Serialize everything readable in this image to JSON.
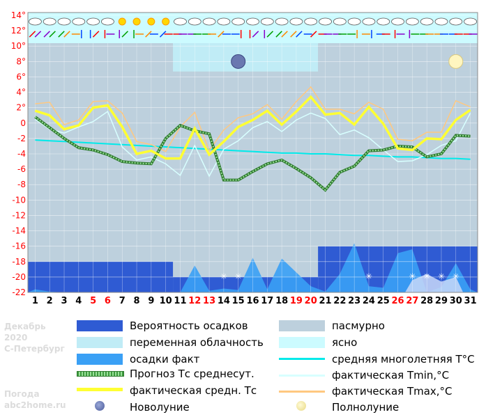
{
  "header": {
    "month": "Декабрь",
    "year": "2020",
    "city": "С-Петербург",
    "site_line1": "Погода",
    "site_line2": "abc2home.ru"
  },
  "legend": {
    "precip_prob": "Вероятность осадков",
    "partly_cloudy": "переменная облачность",
    "precip_fact": "осадки факт",
    "forecast_tc": "Прогноз Тс среднесут.",
    "actual_tc": "фактическая средн. Тс",
    "new_moon": "Новолуние",
    "overcast": "пасмурно",
    "clear": "ясно",
    "avg_longterm": "средняя многолетняя T°C",
    "actual_tmin": "фактическая Tmin,°C",
    "actual_tmax": "фактическая Tmax,°C",
    "full_moon": "Полнолуние"
  },
  "colors": {
    "overcast": "#bdd0dd",
    "partly_cloudy": "#c0ecf6",
    "clear": "#ccfbff",
    "precip_prob": "#2f5bd3",
    "precip_fact": "#3aa0f5",
    "forecast": "#3d9a3d",
    "actual": "#ffff33",
    "tmax": "#ffc880",
    "tmin": "#d8ffff",
    "longterm": "#00eaea",
    "weekend": "#ff0000"
  },
  "chart_data": {
    "type": "line",
    "ylim": [
      -22,
      14
    ],
    "yticks": [
      "14°",
      "12°",
      "10°",
      "8°",
      "6°",
      "4°",
      "2°",
      "0",
      "-2",
      "-4",
      "-6",
      "-8",
      "-10",
      "-12",
      "-14",
      "-16",
      "-18",
      "-20",
      "-22"
    ],
    "days": [
      "1",
      "2",
      "3",
      "4",
      "5",
      "6",
      "7",
      "8",
      "9",
      "10",
      "11",
      "12",
      "13",
      "14",
      "15",
      "16",
      "17",
      "18",
      "19",
      "20",
      "21",
      "22",
      "23",
      "24",
      "25",
      "26",
      "27",
      "28",
      "29",
      "30",
      "31"
    ],
    "weekend_days": [
      5,
      6,
      12,
      13,
      19,
      20,
      26,
      27
    ],
    "sky": [
      {
        "from": 0.5,
        "to": 10.5,
        "state": "overcast"
      },
      {
        "from": 10.5,
        "to": 20.5,
        "state": "partly_cloudy"
      },
      {
        "from": 20.5,
        "to": 31.5,
        "state": "overcast"
      }
    ],
    "precip_probability": [
      {
        "from": 0.5,
        "to": 10.5,
        "level": -18
      },
      {
        "from": 10.5,
        "to": 20.5,
        "level": -20
      },
      {
        "from": 20.5,
        "to": 31.5,
        "level": -16
      }
    ],
    "precip_fact": [
      -21.6,
      -21.9,
      -22,
      -22,
      -22,
      -22,
      -22,
      -22,
      -22,
      -22,
      -22,
      -18.5,
      -21.8,
      -21.5,
      -21.7,
      -17.5,
      -21.6,
      -17.6,
      -19.4,
      -21.2,
      -21.9,
      -19.6,
      -15.6,
      -21.2,
      -21.4,
      -16.9,
      -16.4,
      -22,
      -21.3,
      -18.2,
      -21.6
    ],
    "snow_days": [
      14,
      15,
      24,
      27,
      28,
      29,
      30
    ],
    "series": [
      {
        "key": "forecast",
        "values": [
          0.8,
          -0.6,
          -2,
          -3.2,
          -3.5,
          -4.1,
          -5,
          -5.2,
          -5.3,
          -2,
          -0.3,
          -1,
          -1.4,
          -7.4,
          -7.4,
          -6.3,
          -5.3,
          -4.8,
          -5.9,
          -7.1,
          -8.7,
          -6.4,
          -5.6,
          -3.6,
          -3.5,
          -3,
          -3.1,
          -4.4,
          -4,
          -1.6,
          -1.7
        ]
      },
      {
        "key": "tmax",
        "values": [
          2.5,
          2.7,
          -0.2,
          0.4,
          2.8,
          2.9,
          1.3,
          -2.4,
          -2.8,
          -3.7,
          -0.5,
          1.4,
          -3.6,
          -0.9,
          0.7,
          1.2,
          2.4,
          0.5,
          2.8,
          4.7,
          1.8,
          1.8,
          1.2,
          2.7,
          1.8,
          -2.1,
          -2.3,
          -1.2,
          -1.2,
          2.9,
          2.1
        ]
      },
      {
        "key": "tmin",
        "values": [
          0.5,
          -0.8,
          -1.3,
          -0.5,
          0.2,
          1.5,
          -3.1,
          -4.8,
          -4.4,
          -5.3,
          -6.8,
          -2.9,
          -6.9,
          -3.4,
          -2.3,
          -0.6,
          0.2,
          -1.1,
          0.4,
          1.3,
          0.6,
          -1.5,
          -0.9,
          -1.9,
          -3.5,
          -5,
          -4.9,
          -4.1,
          -2.9,
          -2.3,
          1.3
        ]
      },
      {
        "key": "actual",
        "values": [
          1.6,
          1,
          -0.8,
          -0.3,
          2,
          2.3,
          -0.5,
          -4,
          -3.6,
          -4.6,
          -4.6,
          -0.7,
          -4.1,
          -2.4,
          -0.5,
          0.4,
          1.6,
          -0.2,
          1.5,
          3.4,
          1.1,
          1.3,
          -0.2,
          2.1,
          -0.1,
          -3.3,
          -3.5,
          -2,
          -2.1,
          0.4,
          1.7
        ]
      },
      {
        "key": "longterm",
        "values": [
          -2.2,
          -2.3,
          -2.4,
          -2.5,
          -2.6,
          -2.7,
          -2.8,
          -2.9,
          -3,
          -3.1,
          -3.2,
          -3.3,
          -3.4,
          -3.5,
          -3.6,
          -3.7,
          -3.8,
          -3.9,
          -3.9,
          -4,
          -4,
          -4.1,
          -4.2,
          -4.2,
          -4.3,
          -4.4,
          -4.4,
          -4.5,
          -4.6,
          -4.6,
          -4.7
        ]
      }
    ],
    "weather_icons": [
      "cloud",
      "cloud",
      "cloud",
      "cloud",
      "cloud",
      "cloud",
      "sun",
      "sun",
      "sun",
      "sun",
      "cloud",
      "cloud",
      "cloud",
      "cloud",
      "cloud",
      "cloud",
      "cloud",
      "cloud",
      "cloud",
      "cloud",
      "cloud",
      "cloud",
      "cloud",
      "cloud",
      "cloud",
      "cloud",
      "cloud",
      "cloud",
      "cloud",
      "cloud",
      "cloud"
    ],
    "wind_arrows": [
      [
        "ne",
        "ne"
      ],
      [
        "ne",
        "sw"
      ],
      [
        "ne",
        "ne"
      ],
      [
        "e",
        "n"
      ],
      [
        "n",
        "ne"
      ],
      [
        "n",
        "w"
      ],
      [
        "n",
        "ne"
      ],
      [
        "n",
        "e"
      ],
      [
        "ne",
        "e"
      ],
      [
        "ne",
        "e"
      ],
      [
        "e",
        "e"
      ],
      [
        "e",
        "e"
      ],
      [
        "e",
        "e"
      ],
      [
        "sw",
        "e"
      ],
      [
        "e",
        "s"
      ],
      [
        "n",
        "sw"
      ],
      [
        "n",
        "ne"
      ],
      [
        "sw",
        "ne"
      ],
      [
        "ne",
        "ne"
      ],
      [
        "e",
        "ne"
      ],
      [
        "e",
        "e"
      ],
      [
        "e",
        "e"
      ],
      [
        "e",
        "n"
      ],
      [
        "e",
        "n"
      ],
      [
        "e",
        "e"
      ],
      [
        "s",
        "e"
      ],
      [
        "s",
        "e"
      ],
      [
        "e",
        "e"
      ],
      [
        "e",
        "e"
      ],
      [
        "e",
        "e"
      ],
      [
        "e",
        "e"
      ]
    ],
    "moons": [
      {
        "phase": "new",
        "day": 15
      },
      {
        "phase": "full",
        "day": 30
      }
    ]
  }
}
